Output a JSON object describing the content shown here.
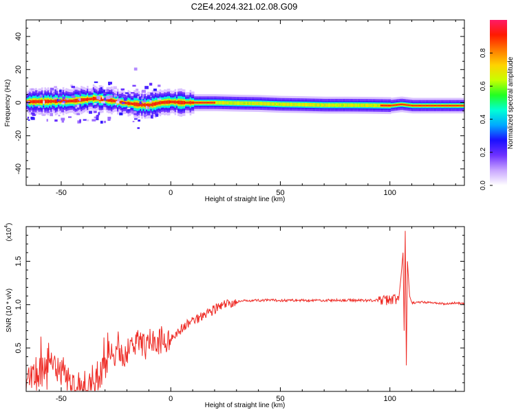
{
  "title": "C2E4.2024.321.02.08.G09",
  "chart_data": [
    {
      "type": "heatmap",
      "xlabel": "Height of straight line (km)",
      "ylabel": "Frequency (Hz)",
      "xlim": [
        -66,
        134
      ],
      "ylim": [
        -50,
        50
      ],
      "xticks": [
        -50,
        0,
        50,
        100
      ],
      "yticks": [
        -40,
        -20,
        0,
        20,
        40
      ],
      "colorbar": {
        "label": "Normalized spectral amplitude",
        "range": [
          0.0,
          1.0
        ],
        "ticks": [
          "0.0",
          "0.2",
          "0.4",
          "0.6",
          "0.8"
        ],
        "colormap": [
          "#ffffff",
          "#c9a6ff",
          "#6f32ff",
          "#1b10ff",
          "#00a8ff",
          "#00ffd6",
          "#22ff22",
          "#c8ff00",
          "#ffd200",
          "#ff7a00",
          "#ff1a00",
          "#ff1a66"
        ]
      },
      "ridge": {
        "x": [
          -66,
          -55,
          -45,
          -35,
          -28,
          -22,
          -15,
          -10,
          -5,
          0,
          5,
          10,
          20,
          30,
          40,
          50,
          60,
          70,
          80,
          90,
          100,
          105,
          110,
          120,
          134
        ],
        "frequency": [
          0.5,
          0.8,
          1.0,
          2.5,
          1.5,
          0,
          -1.2,
          -1.5,
          0,
          0.5,
          0,
          0,
          0,
          -0.3,
          -0.5,
          -1.0,
          -1.2,
          -1.5,
          -1.5,
          -1.6,
          -1.8,
          -1.0,
          -1.8,
          -1.8,
          -1.8
        ]
      }
    },
    {
      "type": "line",
      "xlabel": "Height of straight line (km)",
      "ylabel": "SNR (10 * v/v)",
      "yscale_label": "(x10",
      "yscale_exponent": "4",
      "xlim": [
        -66,
        134
      ],
      "ylim": [
        0.0,
        1.9
      ],
      "xticks": [
        -50,
        0,
        50,
        100
      ],
      "yticks": [
        0.5,
        1.0,
        1.5
      ],
      "color": "#ee2a24",
      "series": [
        {
          "x": [
            -66,
            -62,
            -58,
            -55,
            -52,
            -50,
            -47,
            -45,
            -42,
            -40,
            -38,
            -35,
            -32,
            -30,
            -28,
            -25,
            -22,
            -20,
            -17,
            -15,
            -12,
            -10,
            -7,
            -5,
            -2,
            0,
            3,
            5,
            8,
            10,
            13,
            15,
            18,
            20,
            23,
            25,
            28,
            30,
            33,
            35,
            40,
            45,
            50,
            55,
            60,
            65,
            70,
            75,
            80,
            85,
            90,
            95,
            98,
            100,
            102,
            104,
            105,
            106,
            106.5,
            107,
            107.5,
            108,
            109,
            110,
            115,
            120,
            125,
            130,
            134
          ],
          "y": [
            0.08,
            0.15,
            0.25,
            0.4,
            0.3,
            0.2,
            0.12,
            0.08,
            0.05,
            0.06,
            0.1,
            0.15,
            0.2,
            0.3,
            0.38,
            0.45,
            0.4,
            0.48,
            0.52,
            0.55,
            0.5,
            0.58,
            0.55,
            0.6,
            0.58,
            0.62,
            0.68,
            0.72,
            0.78,
            0.82,
            0.85,
            0.9,
            0.92,
            0.95,
            0.98,
            1.0,
            1.02,
            1.03,
            1.04,
            1.05,
            1.05,
            1.05,
            1.05,
            1.05,
            1.05,
            1.05,
            1.05,
            1.05,
            1.05,
            1.05,
            1.05,
            1.05,
            1.05,
            1.06,
            1.07,
            1.05,
            1.3,
            1.6,
            0.7,
            1.85,
            0.3,
            1.5,
            1.1,
            1.02,
            1.03,
            1.02,
            1.01,
            1.02,
            1.01
          ]
        }
      ]
    }
  ]
}
